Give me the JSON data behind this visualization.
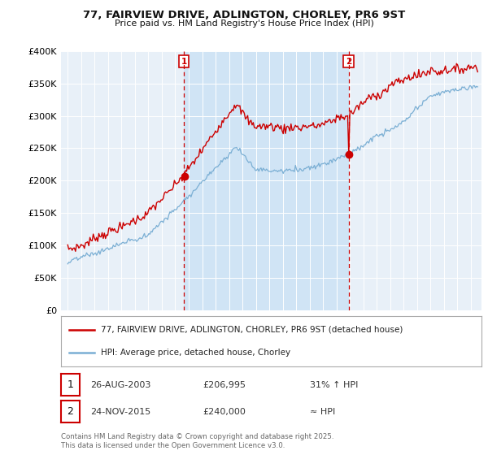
{
  "title_line1": "77, FAIRVIEW DRIVE, ADLINGTON, CHORLEY, PR6 9ST",
  "title_line2": "Price paid vs. HM Land Registry's House Price Index (HPI)",
  "red_label": "77, FAIRVIEW DRIVE, ADLINGTON, CHORLEY, PR6 9ST (detached house)",
  "blue_label": "HPI: Average price, detached house, Chorley",
  "sale1_date": "26-AUG-2003",
  "sale1_price": "£206,995",
  "sale1_hpi": "31% ↑ HPI",
  "sale2_date": "24-NOV-2015",
  "sale2_price": "£240,000",
  "sale2_hpi": "≈ HPI",
  "footnote": "Contains HM Land Registry data © Crown copyright and database right 2025.\nThis data is licensed under the Open Government Licence v3.0.",
  "sale1_year": 2003.65,
  "sale2_year": 2015.9,
  "sale1_red_value": 206995,
  "sale2_red_value": 240000,
  "red_color": "#cc0000",
  "blue_color": "#7bafd4",
  "shade_color": "#d0e4f5",
  "vline_color": "#cc0000",
  "plot_bg": "#e8f0f8",
  "ylim": [
    0,
    400000
  ],
  "yticks": [
    0,
    50000,
    100000,
    150000,
    200000,
    250000,
    300000,
    350000,
    400000
  ],
  "ytick_labels": [
    "£0",
    "£50K",
    "£100K",
    "£150K",
    "£200K",
    "£250K",
    "£300K",
    "£350K",
    "£400K"
  ],
  "xmin": 1994.5,
  "xmax": 2025.8
}
